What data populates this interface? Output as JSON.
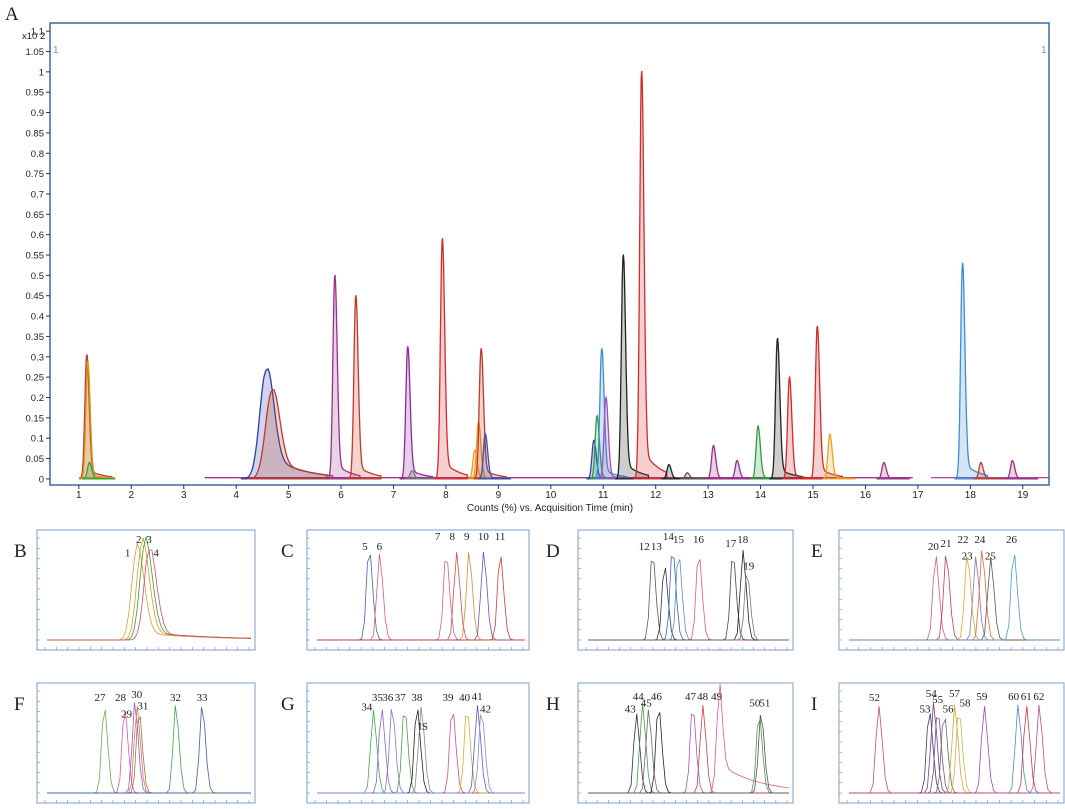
{
  "figure": {
    "main_letter": "A"
  },
  "chart_data": [
    {
      "type": "line",
      "panel": "A",
      "title": "",
      "xlabel": "Counts (%) vs. Acquisition Time (min)",
      "ylabel": "",
      "y_multiplier": "x10 2",
      "corner_left": "1",
      "corner_right": "1",
      "xlim": [
        0.45,
        19.5
      ],
      "ylim": [
        -0.015,
        1.12
      ],
      "xticks": [
        "1",
        "2",
        "3",
        "4",
        "5",
        "6",
        "7",
        "8",
        "9",
        "10",
        "11",
        "12",
        "13",
        "14",
        "15",
        "16",
        "17",
        "18",
        "19"
      ],
      "yticks": [
        "0",
        "0.05",
        "0.1",
        "0.15",
        "0.2",
        "0.25",
        "0.3",
        "0.35",
        "0.4",
        "0.45",
        "0.5",
        "0.55",
        "0.6",
        "0.65",
        "0.7",
        "0.75",
        "0.8",
        "0.85",
        "0.9",
        "0.95",
        "1",
        "1.05",
        "1.1"
      ],
      "grid": false,
      "peaks": [
        {
          "x": 1.15,
          "y": 0.305,
          "color": "#c0392b"
        },
        {
          "x": 1.17,
          "y": 0.29,
          "color": "#d4a017"
        },
        {
          "x": 1.2,
          "y": 0.04,
          "color": "#3a9d3a"
        },
        {
          "x": 4.57,
          "y": 0.265,
          "color": "#2b3fa6"
        },
        {
          "x": 4.68,
          "y": 0.215,
          "color": "#c0392b"
        },
        {
          "x": 5.88,
          "y": 0.5,
          "color": "#9b2f8c"
        },
        {
          "x": 6.28,
          "y": 0.45,
          "color": "#c0392b"
        },
        {
          "x": 7.27,
          "y": 0.325,
          "color": "#8e2a9c"
        },
        {
          "x": 7.35,
          "y": 0.02,
          "color": "#777777"
        },
        {
          "x": 7.93,
          "y": 0.59,
          "color": "#d42a2a"
        },
        {
          "x": 8.55,
          "y": 0.07,
          "color": "#f29a1d"
        },
        {
          "x": 8.62,
          "y": 0.14,
          "color": "#f29a1d"
        },
        {
          "x": 8.67,
          "y": 0.32,
          "color": "#c0392b"
        },
        {
          "x": 8.75,
          "y": 0.11,
          "color": "#3a4fb5"
        },
        {
          "x": 10.82,
          "y": 0.095,
          "color": "#2b3fa6"
        },
        {
          "x": 10.88,
          "y": 0.155,
          "color": "#2f9e44"
        },
        {
          "x": 10.97,
          "y": 0.32,
          "color": "#3a8fd8"
        },
        {
          "x": 11.05,
          "y": 0.2,
          "color": "#9b4fc0"
        },
        {
          "x": 11.38,
          "y": 0.55,
          "color": "#222222"
        },
        {
          "x": 11.73,
          "y": 1.0,
          "color": "#d42a2a"
        },
        {
          "x": 12.25,
          "y": 0.035,
          "color": "#222222"
        },
        {
          "x": 12.6,
          "y": 0.015,
          "color": "#555555"
        },
        {
          "x": 13.1,
          "y": 0.082,
          "color": "#9b2f8c"
        },
        {
          "x": 13.55,
          "y": 0.045,
          "color": "#9b2f8c"
        },
        {
          "x": 13.95,
          "y": 0.13,
          "color": "#2f9e44"
        },
        {
          "x": 14.32,
          "y": 0.345,
          "color": "#222222"
        },
        {
          "x": 14.55,
          "y": 0.25,
          "color": "#d42a2a"
        },
        {
          "x": 15.08,
          "y": 0.375,
          "color": "#d42a2a"
        },
        {
          "x": 15.32,
          "y": 0.11,
          "color": "#f0a020"
        },
        {
          "x": 16.35,
          "y": 0.04,
          "color": "#9b2f8c"
        },
        {
          "x": 17.85,
          "y": 0.53,
          "color": "#3a8fd8"
        },
        {
          "x": 18.2,
          "y": 0.04,
          "color": "#c0392b"
        },
        {
          "x": 18.8,
          "y": 0.045,
          "color": "#9b2f8c"
        }
      ]
    },
    {
      "type": "line",
      "panel": "B",
      "peaks": [
        {
          "x": 0.44,
          "y": 0.92,
          "color": "#e8963a"
        },
        {
          "x": 0.465,
          "y": 0.98,
          "color": "#d4a017"
        },
        {
          "x": 0.48,
          "y": 0.99,
          "color": "#3a9d3a"
        },
        {
          "x": 0.5,
          "y": 0.92,
          "color": "#d94a6a"
        }
      ],
      "labels": [
        {
          "t": "1",
          "x": 0.395,
          "y": 0.83
        },
        {
          "t": "2",
          "x": 0.45,
          "y": 0.97
        },
        {
          "t": "3",
          "x": 0.5,
          "y": 0.97
        },
        {
          "t": "4",
          "x": 0.535,
          "y": 0.83
        }
      ]
    },
    {
      "type": "line",
      "panel": "C",
      "peaks": [
        {
          "x": 0.25,
          "y": 0.95,
          "color": "#4a5fc0"
        },
        {
          "x": 0.3,
          "y": 0.88,
          "color": "#e05a7a"
        },
        {
          "x": 0.62,
          "y": 0.9,
          "color": "#e05a8a"
        },
        {
          "x": 0.67,
          "y": 0.9,
          "color": "#d94a4a"
        },
        {
          "x": 0.73,
          "y": 0.9,
          "color": "#d98a3a"
        },
        {
          "x": 0.8,
          "y": 0.9,
          "color": "#7a4ac0"
        },
        {
          "x": 0.88,
          "y": 0.9,
          "color": "#d43a3a"
        }
      ],
      "labels": [
        {
          "t": "5",
          "x": 0.23,
          "y": 0.9
        },
        {
          "t": "6",
          "x": 0.3,
          "y": 0.9
        },
        {
          "t": "7",
          "x": 0.58,
          "y": 1.0
        },
        {
          "t": "8",
          "x": 0.65,
          "y": 1.0
        },
        {
          "t": "9",
          "x": 0.72,
          "y": 1.0
        },
        {
          "t": "10",
          "x": 0.8,
          "y": 1.0
        },
        {
          "t": "11",
          "x": 0.88,
          "y": 1.0
        }
      ]
    },
    {
      "type": "line",
      "panel": "D",
      "peaks": [
        {
          "x": 0.32,
          "y": 0.9,
          "color": "#555555"
        },
        {
          "x": 0.38,
          "y": 0.78,
          "color": "#333333"
        },
        {
          "x": 0.42,
          "y": 0.95,
          "color": "#3a5fc0"
        },
        {
          "x": 0.45,
          "y": 0.9,
          "color": "#5a8ad8"
        },
        {
          "x": 0.55,
          "y": 0.9,
          "color": "#e05a7a"
        },
        {
          "x": 0.72,
          "y": 0.9,
          "color": "#444444"
        },
        {
          "x": 0.77,
          "y": 0.92,
          "color": "#222222"
        },
        {
          "x": 0.79,
          "y": 0.7,
          "color": "#777777"
        }
      ],
      "labels": [
        {
          "t": "12",
          "x": 0.28,
          "y": 0.9
        },
        {
          "t": "13",
          "x": 0.34,
          "y": 0.9
        },
        {
          "t": "14",
          "x": 0.4,
          "y": 1.0
        },
        {
          "t": "15",
          "x": 0.45,
          "y": 0.97
        },
        {
          "t": "16",
          "x": 0.55,
          "y": 0.97
        },
        {
          "t": "17",
          "x": 0.71,
          "y": 0.93
        },
        {
          "t": "18",
          "x": 0.77,
          "y": 0.97
        },
        {
          "t": "19",
          "x": 0.8,
          "y": 0.7
        }
      ]
    },
    {
      "type": "line",
      "panel": "E",
      "peaks": [
        {
          "x": 0.41,
          "y": 0.88,
          "color": "#e05a7a"
        },
        {
          "x": 0.46,
          "y": 0.88,
          "color": "#d43a4a"
        },
        {
          "x": 0.56,
          "y": 0.88,
          "color": "#f0a030"
        },
        {
          "x": 0.6,
          "y": 0.85,
          "color": "#7a7ac0"
        },
        {
          "x": 0.63,
          "y": 0.92,
          "color": "#e06a3a"
        },
        {
          "x": 0.67,
          "y": 0.85,
          "color": "#555555"
        },
        {
          "x": 0.78,
          "y": 0.92,
          "color": "#4a9ad8"
        }
      ],
      "labels": [
        {
          "t": "20",
          "x": 0.4,
          "y": 0.9
        },
        {
          "t": "21",
          "x": 0.46,
          "y": 0.93
        },
        {
          "t": "22",
          "x": 0.54,
          "y": 0.97
        },
        {
          "t": "23",
          "x": 0.56,
          "y": 0.8
        },
        {
          "t": "24",
          "x": 0.62,
          "y": 0.97
        },
        {
          "t": "25",
          "x": 0.67,
          "y": 0.8
        },
        {
          "t": "26",
          "x": 0.77,
          "y": 0.97
        }
      ]
    },
    {
      "type": "line",
      "panel": "F",
      "peaks": [
        {
          "x": 0.28,
          "y": 0.9,
          "color": "#6ab04a"
        },
        {
          "x": 0.38,
          "y": 0.88,
          "color": "#e05aa0"
        },
        {
          "x": 0.43,
          "y": 0.93,
          "color": "#9a5ac0"
        },
        {
          "x": 0.44,
          "y": 0.9,
          "color": "#e0706a"
        },
        {
          "x": 0.45,
          "y": 0.85,
          "color": "#9a7a3a"
        },
        {
          "x": 0.63,
          "y": 0.9,
          "color": "#4aa04a"
        },
        {
          "x": 0.76,
          "y": 0.9,
          "color": "#3a5ac0"
        }
      ],
      "labels": [
        {
          "t": "27",
          "x": 0.26,
          "y": 0.92
        },
        {
          "t": "28",
          "x": 0.36,
          "y": 0.92
        },
        {
          "t": "29",
          "x": 0.39,
          "y": 0.75
        },
        {
          "t": "30",
          "x": 0.44,
          "y": 0.95
        },
        {
          "t": "31",
          "x": 0.47,
          "y": 0.83
        },
        {
          "t": "32",
          "x": 0.63,
          "y": 0.92
        },
        {
          "t": "33",
          "x": 0.76,
          "y": 0.92
        }
      ]
    },
    {
      "type": "line",
      "panel": "G",
      "peaks": [
        {
          "x": 0.27,
          "y": 0.85,
          "color": "#3ab04a"
        },
        {
          "x": 0.31,
          "y": 0.88,
          "color": "#8a6ac0"
        },
        {
          "x": 0.36,
          "y": 0.88,
          "color": "#7a7ad8"
        },
        {
          "x": 0.42,
          "y": 0.88,
          "color": "#4aa04a"
        },
        {
          "x": 0.48,
          "y": 0.9,
          "color": "#222222"
        },
        {
          "x": 0.5,
          "y": 0.88,
          "color": "#888888"
        },
        {
          "x": 0.65,
          "y": 0.88,
          "color": "#e04a7a"
        },
        {
          "x": 0.72,
          "y": 0.88,
          "color": "#d4b030"
        },
        {
          "x": 0.77,
          "y": 0.9,
          "color": "#5a5ad0"
        },
        {
          "x": 0.79,
          "y": 0.85,
          "color": "#8a8ad8"
        }
      ],
      "labels": [
        {
          "t": "34",
          "x": 0.24,
          "y": 0.82
        },
        {
          "t": "35",
          "x": 0.29,
          "y": 0.92
        },
        {
          "t": "36",
          "x": 0.34,
          "y": 0.92
        },
        {
          "t": "37",
          "x": 0.4,
          "y": 0.92
        },
        {
          "t": "38",
          "x": 0.48,
          "y": 0.92
        },
        {
          "t": "IS",
          "x": 0.51,
          "y": 0.62
        },
        {
          "t": "39",
          "x": 0.63,
          "y": 0.92
        },
        {
          "t": "40",
          "x": 0.71,
          "y": 0.92
        },
        {
          "t": "41",
          "x": 0.77,
          "y": 0.93
        },
        {
          "t": "42",
          "x": 0.81,
          "y": 0.8
        }
      ]
    },
    {
      "type": "line",
      "panel": "H",
      "peaks": [
        {
          "x": 0.24,
          "y": 0.82,
          "color": "#333333"
        },
        {
          "x": 0.27,
          "y": 0.92,
          "color": "#4a9a4a"
        },
        {
          "x": 0.3,
          "y": 0.85,
          "color": "#6a6a6a"
        },
        {
          "x": 0.35,
          "y": 0.9,
          "color": "#222222"
        },
        {
          "x": 0.52,
          "y": 0.9,
          "color": "#9a5ac0"
        },
        {
          "x": 0.57,
          "y": 0.9,
          "color": "#d43a4a"
        },
        {
          "x": 0.65,
          "y": 0.9,
          "color": "#e05a9a"
        },
        {
          "x": 0.85,
          "y": 0.82,
          "color": "#4aa04a"
        },
        {
          "x": 0.86,
          "y": 0.82,
          "color": "#555555"
        }
      ],
      "labels": [
        {
          "t": "43",
          "x": 0.21,
          "y": 0.8
        },
        {
          "t": "44",
          "x": 0.25,
          "y": 0.93
        },
        {
          "t": "45",
          "x": 0.29,
          "y": 0.86
        },
        {
          "t": "46",
          "x": 0.34,
          "y": 0.93
        },
        {
          "t": "47",
          "x": 0.51,
          "y": 0.93
        },
        {
          "t": "48",
          "x": 0.57,
          "y": 0.93
        },
        {
          "t": "49",
          "x": 0.64,
          "y": 0.93
        },
        {
          "t": "50",
          "x": 0.83,
          "y": 0.86
        },
        {
          "t": "51",
          "x": 0.88,
          "y": 0.86
        }
      ]
    },
    {
      "type": "line",
      "panel": "I",
      "peaks": [
        {
          "x": 0.14,
          "y": 0.9,
          "color": "#c04a8a"
        },
        {
          "x": 0.38,
          "y": 0.86,
          "color": "#3a3a8a"
        },
        {
          "x": 0.4,
          "y": 0.92,
          "color": "#8a3a8a"
        },
        {
          "x": 0.42,
          "y": 0.86,
          "color": "#5a5aa0"
        },
        {
          "x": 0.45,
          "y": 0.82,
          "color": "#6a6a6a"
        },
        {
          "x": 0.5,
          "y": 0.9,
          "color": "#e0a03a"
        },
        {
          "x": 0.52,
          "y": 0.86,
          "color": "#d4b040"
        },
        {
          "x": 0.64,
          "y": 0.9,
          "color": "#9a4ac0"
        },
        {
          "x": 0.8,
          "y": 0.9,
          "color": "#4a8ad8"
        },
        {
          "x": 0.84,
          "y": 0.9,
          "color": "#d43a3a"
        },
        {
          "x": 0.9,
          "y": 0.9,
          "color": "#c04a8a"
        }
      ],
      "labels": [
        {
          "t": "52",
          "x": 0.12,
          "y": 0.92
        },
        {
          "t": "53",
          "x": 0.36,
          "y": 0.8
        },
        {
          "t": "54",
          "x": 0.39,
          "y": 0.96
        },
        {
          "t": "55",
          "x": 0.42,
          "y": 0.9
        },
        {
          "t": "56",
          "x": 0.47,
          "y": 0.8
        },
        {
          "t": "57",
          "x": 0.5,
          "y": 0.96
        },
        {
          "t": "58",
          "x": 0.55,
          "y": 0.86
        },
        {
          "t": "59",
          "x": 0.63,
          "y": 0.93
        },
        {
          "t": "60",
          "x": 0.78,
          "y": 0.93
        },
        {
          "t": "61",
          "x": 0.84,
          "y": 0.93
        },
        {
          "t": "62",
          "x": 0.9,
          "y": 0.93
        }
      ]
    }
  ]
}
